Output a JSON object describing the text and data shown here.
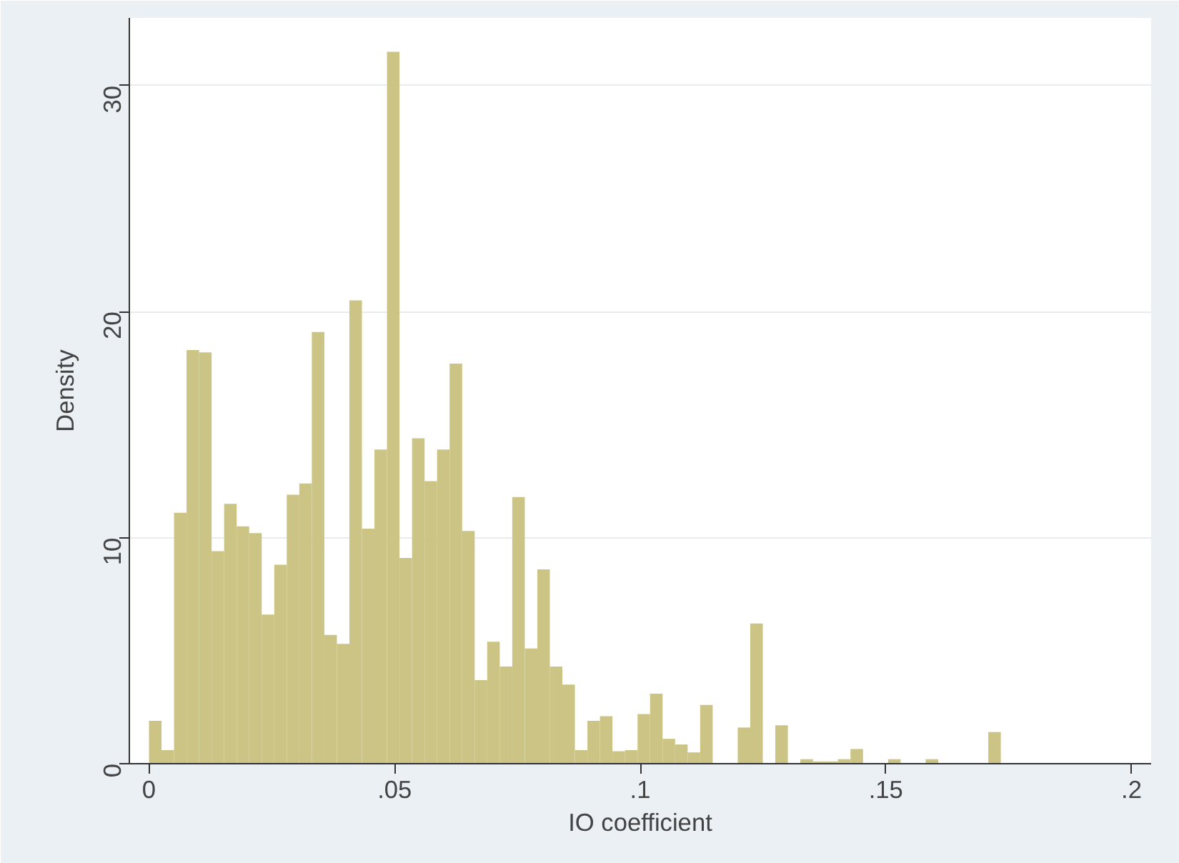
{
  "chart_data": {
    "type": "histogram",
    "xlabel": "IO coefficient",
    "ylabel": "Density",
    "color": "#cbc484",
    "bins": [
      0,
      0.00255,
      0.0051,
      0.00765,
      0.0102,
      0.01275,
      0.0153,
      0.01785,
      0.0204,
      0.02295,
      0.0255,
      0.02805,
      0.0306,
      0.03315,
      0.0357,
      0.03825,
      0.0408,
      0.04335,
      0.0459,
      0.04845,
      0.051,
      0.05355,
      0.0561,
      0.05865,
      0.0612,
      0.06375,
      0.0663,
      0.06885,
      0.0714,
      0.07395,
      0.0765,
      0.07905,
      0.0816,
      0.08415,
      0.0867,
      0.08925,
      0.0918,
      0.09435,
      0.0969,
      0.09945,
      0.102,
      0.10455,
      0.1071,
      0.10965,
      0.1122,
      0.11475,
      0.1173,
      0.11985,
      0.1224,
      0.12495,
      0.1275,
      0.13005,
      0.1326,
      0.13515,
      0.1377,
      0.14025,
      0.1428,
      0.14535,
      0.1479,
      0.15045,
      0.153,
      0.15555,
      0.1581,
      0.16065,
      0.1632,
      0.16575,
      0.1683,
      0.17085,
      0.1734
    ],
    "values": [
      1.9,
      0.6,
      11.1,
      18.3,
      18.2,
      9.4,
      11.5,
      10.5,
      10.2,
      6.6,
      8.8,
      11.9,
      12.4,
      19.1,
      5.7,
      5.3,
      20.5,
      10.4,
      13.9,
      31.5,
      9.1,
      14.4,
      12.5,
      13.9,
      17.7,
      10.3,
      3.7,
      5.4,
      4.3,
      11.8,
      5.1,
      8.6,
      4.3,
      3.5,
      0.6,
      1.9,
      2.1,
      0.55,
      0.6,
      2.2,
      3.1,
      1.1,
      0.85,
      0.5,
      2.6,
      0,
      0,
      1.6,
      6.2,
      0,
      1.7,
      0,
      0.2,
      0.1,
      0.1,
      0.2,
      0.65,
      0,
      0,
      0.2,
      0,
      0,
      0.2,
      0,
      0,
      0,
      0,
      1.4
    ],
    "xlim": [
      -0.004,
      0.204
    ],
    "ylim": [
      0,
      33
    ],
    "xticks": [
      0,
      {
        "value": 0.05,
        "label": ".05"
      },
      {
        "value": 0.1,
        "label": ".1"
      },
      {
        "value": 0.15,
        "label": ".15"
      },
      {
        "value": 0.2,
        "label": ".2"
      }
    ],
    "yticks": [
      0,
      10,
      20,
      30
    ],
    "grid": "y"
  }
}
